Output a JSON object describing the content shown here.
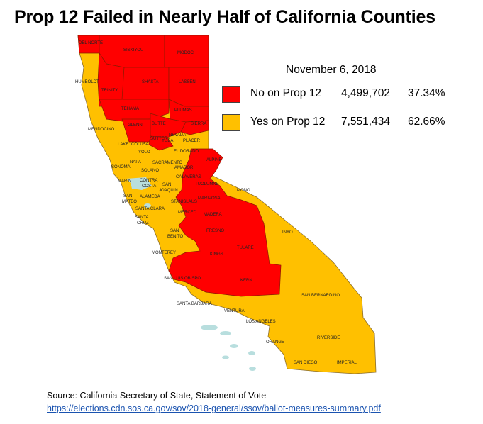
{
  "title": "Prop 12 Failed in Nearly Half of California Counties",
  "legend": {
    "date": "November 6, 2018",
    "no": {
      "label": "No on Prop 12",
      "votes": "4,499,702",
      "percent": "37.34%",
      "color": "#ff0000"
    },
    "yes": {
      "label": "Yes on Prop 12",
      "votes": "7,551,434",
      "percent": "62.66%",
      "color": "#ffc000"
    }
  },
  "colors": {
    "no": "#ff0000",
    "yes": "#ffc000",
    "water": "#b8dede",
    "border": "#8a6d2c"
  },
  "counties": {
    "del_norte": "DEL NORTE",
    "siskiyou": "SISKIYOU",
    "modoc": "MODOC",
    "humboldt": "HUMBOLDT",
    "trinity": "TRINITY",
    "shasta": "SHASTA",
    "lassen": "LASSEN",
    "tehama": "TEHAMA",
    "plumas": "PLUMAS",
    "sierra": "SIERRA",
    "mendocino": "MENDOCINO",
    "glenn": "GLENN",
    "butte": "BUTTE",
    "nevada": "NEVADA",
    "sutter": "SUTTER",
    "yuba": "YUBA",
    "placer": "PLACER",
    "lake": "LAKE",
    "colusa": "COLUSA",
    "el_dorado": "EL DORADO",
    "yolo": "YOLO",
    "alpine": "ALPINE",
    "napa": "NAPA",
    "sacramento": "SACRAMENTO",
    "amador": "AMADOR",
    "sonoma": "SONOMA",
    "solano": "SOLANO",
    "calaveras": "CALAVERAS",
    "marin": "MARIN",
    "contra_costa": "CONTRA COSTA",
    "san_joaquin": "SAN JOAQUIN",
    "tuolumne": "TUOLUMNE",
    "mono": "MONO",
    "san_mateo": "SAN MATEO",
    "alameda": "ALAMEDA",
    "stanislaus": "STANISLAUS",
    "mariposa": "MARIPOSA",
    "santa_clara": "SANTA CLARA",
    "santa_cruz": "SANTA CRUZ",
    "merced": "MERCED",
    "madera": "MADERA",
    "san_benito": "SAN BENITO",
    "fresno": "FRESNO",
    "inyo": "INYO",
    "monterey": "MONTEREY",
    "kings": "KINGS",
    "tulare": "TULARE",
    "san_luis_obispo": "SAN LUIS OBISPO",
    "kern": "KERN",
    "san_bernardino": "SAN BERNARDINO",
    "santa_barbara": "SANTA BARBARA",
    "ventura": "VENTURA",
    "los_angeles": "LOS ANGELES",
    "riverside": "RIVERSIDE",
    "orange": "ORANGE",
    "san_diego": "SAN DIEGO",
    "imperial": "IMPERIAL"
  },
  "source": {
    "text": "Source: California Secretary of State, Statement of Vote",
    "url": "https://elections.cdn.sos.ca.gov/sov/2018-general/ssov/ballot-measures-summary.pdf"
  }
}
